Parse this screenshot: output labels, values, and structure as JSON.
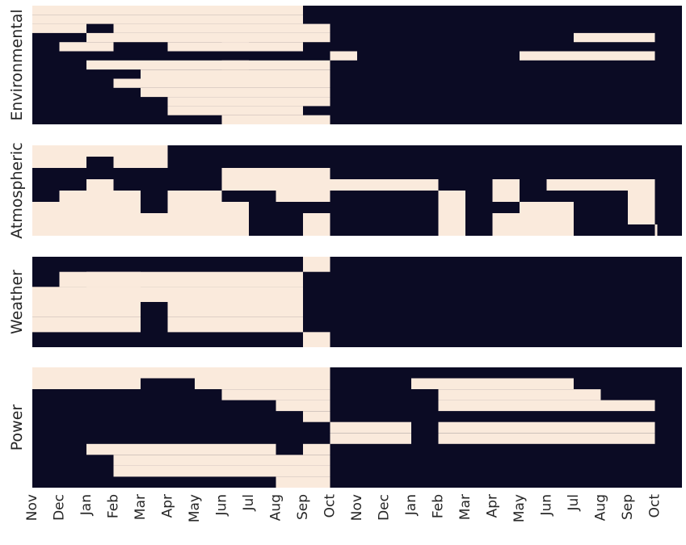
{
  "chart_data": {
    "type": "heatmap",
    "title": "",
    "xlabel": "",
    "colors": {
      "missing": "#0b0b24",
      "present": "#faeadc",
      "background": "#ffffff"
    },
    "x_ticks": [
      "Nov",
      "Dec",
      "Jan",
      "Feb",
      "Mar",
      "Apr",
      "May",
      "Jun",
      "Jul",
      "Aug",
      "Sep",
      "Oct",
      "Nov",
      "Dec",
      "Jan",
      "Feb",
      "Mar",
      "Apr",
      "May",
      "Jun",
      "Jul",
      "Aug",
      "Sep",
      "Oct"
    ],
    "panels": [
      {
        "name": "Environmental",
        "ylabel": "Environmental",
        "rows": [
          [
            [
              "Nov",
              "Sep"
            ]
          ],
          [
            [
              "Nov",
              "Feb"
            ],
            [
              "Feb",
              "Sep"
            ]
          ],
          [
            [
              "Nov",
              "Jan"
            ],
            [
              "Feb",
              "Sep"
            ],
            [
              "Sep",
              "Oct"
            ]
          ],
          [
            [
              "Jan",
              "Sep"
            ],
            [
              "Sep",
              "Oct"
            ],
            [
              "Jul",
              "Oct"
            ]
          ],
          [
            [
              "Dec",
              "Feb"
            ],
            [
              "Apr",
              "Jul"
            ],
            [
              "Jun",
              "Sep"
            ]
          ],
          [
            [
              "Oct",
              "Nov"
            ],
            [
              "May",
              "Oct"
            ]
          ],
          [
            [
              "Jan",
              "Jul"
            ],
            [
              "Jun",
              "Oct"
            ]
          ],
          [
            [
              "Mar",
              "Oct"
            ]
          ],
          [
            [
              "Feb",
              "Oct"
            ]
          ],
          [
            [
              "Mar",
              "Oct"
            ]
          ],
          [
            [
              "Apr",
              "Oct"
            ]
          ],
          [
            [
              "Apr",
              "Sep"
            ]
          ],
          [
            [
              "Jun",
              "Oct"
            ]
          ]
        ]
      },
      {
        "name": "Atmospheric",
        "ylabel": "Atmospheric",
        "rows": [
          [
            [
              "Nov",
              "Apr"
            ]
          ],
          [
            [
              "Nov",
              "Jan"
            ],
            [
              "Feb",
              "Apr"
            ]
          ],
          [
            [
              "Jun",
              "Oct"
            ]
          ],
          [
            [
              "Jan",
              "Feb"
            ],
            [
              "Jun",
              "Sep"
            ],
            [
              "Sep",
              "Feb"
            ],
            [
              "Apr",
              "May"
            ],
            [
              "Jun",
              "Oct"
            ]
          ],
          [
            [
              "Dec",
              "Mar"
            ],
            [
              "Apr",
              "Jun"
            ],
            [
              "Aug",
              "Oct"
            ],
            [
              "Feb",
              "Mar"
            ],
            [
              "Apr",
              "May"
            ],
            [
              "Sep",
              "Oct"
            ]
          ],
          [
            [
              "Nov",
              "Mar"
            ],
            [
              "Apr",
              "Jul"
            ],
            [
              "Feb",
              "Mar"
            ],
            [
              "May",
              "Jul"
            ],
            [
              "Sep",
              "Oct"
            ]
          ],
          [
            [
              "Nov",
              "Jul"
            ],
            [
              "Sep",
              "Oct"
            ],
            [
              "Feb",
              "Mar"
            ],
            [
              "Apr",
              "Jul"
            ],
            [
              "Sep",
              "Oct"
            ]
          ],
          [
            [
              "Nov",
              "Jul"
            ],
            [
              "Sep",
              "Oct"
            ],
            [
              "Feb",
              "Mar"
            ],
            [
              "Apr",
              "Jul"
            ],
            [
              "Oct",
              "Oct"
            ]
          ]
        ]
      },
      {
        "name": "Weather",
        "ylabel": "Weather",
        "rows": [
          [
            [
              "Sep",
              "Oct"
            ]
          ],
          [
            [
              "Dec",
              "Sep"
            ],
            [
              "Jan",
              "Mar"
            ]
          ],
          [
            [
              "Nov",
              "Mar"
            ],
            [
              "Mar",
              "Sep"
            ]
          ],
          [
            [
              "Nov",
              "Mar"
            ],
            [
              "Apr",
              "Sep"
            ]
          ],
          [
            [
              "Nov",
              "Mar"
            ],
            [
              "Apr",
              "Sep"
            ]
          ],
          [
            [
              "Sep",
              "Oct"
            ]
          ]
        ]
      },
      {
        "name": "Power",
        "ylabel": "Power",
        "rows": [
          [
            [
              "Nov",
              "Oct"
            ]
          ],
          [
            [
              "Nov",
              "Mar"
            ],
            [
              "May",
              "Oct"
            ],
            [
              "Jan",
              "Jul"
            ]
          ],
          [
            [
              "Jun",
              "Oct"
            ],
            [
              "Feb",
              "Aug"
            ]
          ],
          [
            [
              "Aug",
              "Oct"
            ],
            [
              "Feb",
              "Oct"
            ]
          ],
          [
            [
              "Sep",
              "Oct"
            ]
          ],
          [
            [
              "Oct",
              "Jan"
            ],
            [
              "Feb",
              "Jul"
            ],
            [
              "Jul",
              "Aug"
            ],
            [
              "Aug",
              "Sep"
            ],
            [
              "Sep",
              "Oct"
            ]
          ],
          [
            [
              "Oct",
              "Jan"
            ],
            [
              "Feb",
              "Jul"
            ],
            [
              "Jul",
              "Aug"
            ],
            [
              "Aug",
              "Sep"
            ],
            [
              "Sep",
              "Oct"
            ]
          ],
          [
            [
              "Jan",
              "Jul"
            ],
            [
              "Jul",
              "Aug"
            ],
            [
              "Sep",
              "Oct"
            ]
          ],
          [
            [
              "Feb",
              "Oct"
            ]
          ],
          [
            [
              "Feb",
              "Jul"
            ],
            [
              "Jul",
              "Oct"
            ]
          ],
          [
            [
              "Aug",
              "Oct"
            ]
          ]
        ]
      }
    ]
  }
}
